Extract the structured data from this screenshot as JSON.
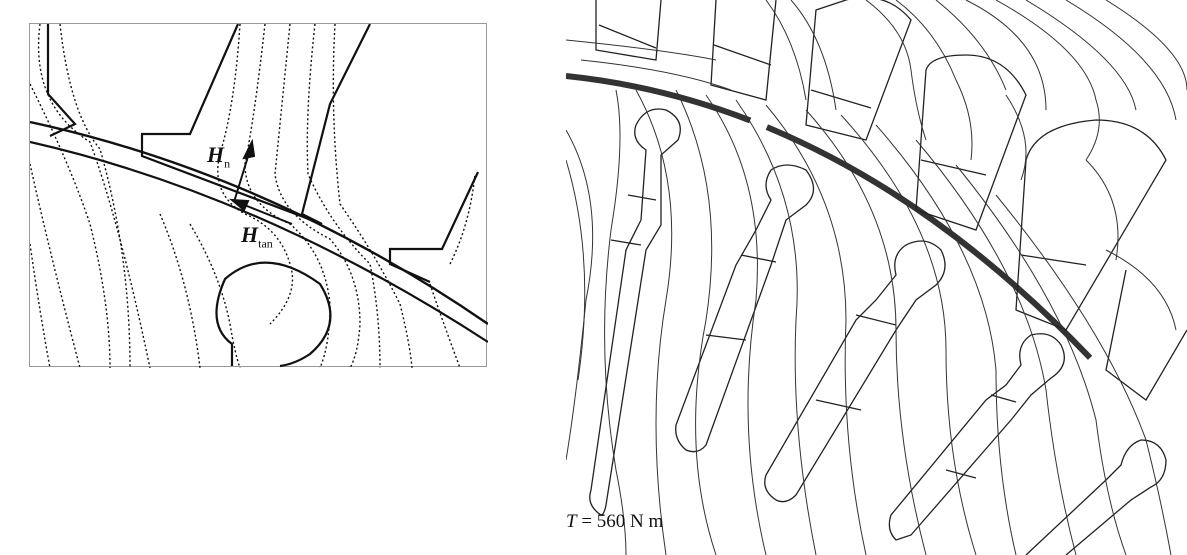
{
  "figure": {
    "left": {
      "label_hn_main": "H",
      "label_hn_sub": "n",
      "label_htan_main": "H",
      "label_htan_sub": "tan"
    },
    "right": {
      "torque_symbol": "T",
      "torque_rest": " = 560 N m"
    }
  },
  "colors": {
    "line": "#111111",
    "frame": "#999999",
    "background": "#ffffff"
  }
}
